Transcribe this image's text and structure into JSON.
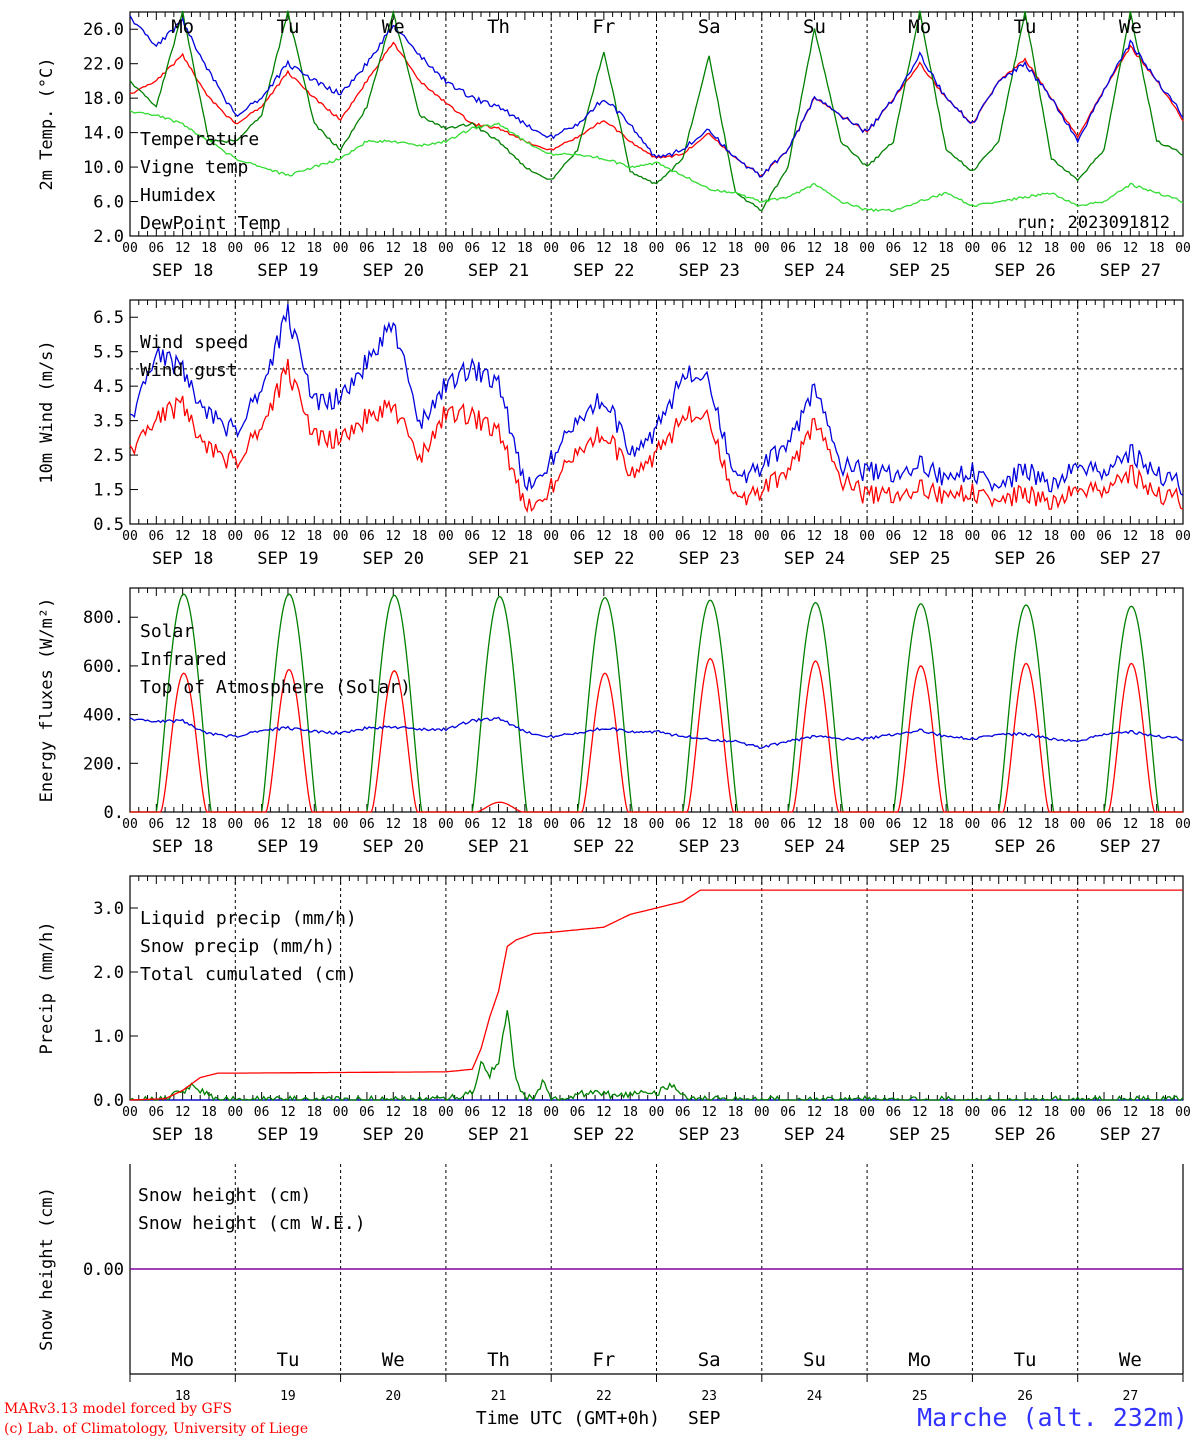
{
  "colors": {
    "red": "#ff0000",
    "darkgreen": "#008000",
    "blue": "#0000dd",
    "lightgreen": "#33dd33",
    "purple": "#8000a0",
    "weekend": "#ff0000"
  },
  "days": {
    "weekday": [
      "Mo",
      "Tu",
      "We",
      "Th",
      "Fr",
      "Sa",
      "Su",
      "Mo",
      "Tu",
      "We"
    ],
    "weekend_flags": [
      false,
      false,
      false,
      false,
      false,
      true,
      true,
      false,
      false,
      false
    ],
    "date_labels": [
      "SEP 18",
      "SEP 19",
      "SEP 20",
      "SEP 21",
      "SEP 22",
      "SEP 23",
      "SEP 24",
      "SEP 25",
      "SEP 26",
      "SEP 27"
    ],
    "day_numbers": [
      "18",
      "19",
      "20",
      "21",
      "22",
      "23",
      "24",
      "25",
      "26",
      "27"
    ],
    "hour_ticks": [
      "00",
      "06",
      "12",
      "18"
    ],
    "final_tick": "00"
  },
  "footer": {
    "model_line": "MARv3.13 model forced by GFS",
    "copyright_line": "(c) Lab. of Climatology, University of Liege",
    "xaxis_title": "Time UTC (GMT+0h)",
    "month": "SEP",
    "station": "Marche (alt. 232m)"
  },
  "chart_data": [
    {
      "type": "line",
      "ylabel": "2m Temp. (°C)",
      "ylim": [
        2,
        28
      ],
      "yticks": [
        "26.0",
        "22.0",
        "18.0",
        "14.0",
        "10.0",
        "6.0",
        "2.0"
      ],
      "ytick_values": [
        26,
        22,
        18,
        14,
        10,
        6,
        2
      ],
      "annotation": "run: 2023091812",
      "x_unit": "hours since SEP 18 00 UTC",
      "legend": [
        "Temperature",
        "Vigne temp",
        "Humidex",
        "DewPoint Temp"
      ],
      "series": [
        {
          "name": "Temperature",
          "color_key": "red",
          "x": [
            0,
            6,
            12,
            18,
            24,
            30,
            36,
            42,
            48,
            54,
            60,
            66,
            72,
            78,
            84,
            90,
            96,
            102,
            108,
            114,
            120,
            126,
            132,
            138,
            144,
            150,
            156,
            162,
            168,
            174,
            180,
            186,
            192,
            198,
            204,
            210,
            216,
            222,
            228,
            234,
            240
          ],
          "values": [
            18.5,
            20,
            23,
            18,
            15,
            17,
            21,
            18,
            15.5,
            20,
            24.5,
            20,
            17.5,
            15,
            14.5,
            13,
            12,
            13.5,
            15.5,
            13,
            11,
            11.5,
            14,
            11,
            9,
            12,
            18,
            16,
            14,
            18,
            22,
            18,
            15,
            20,
            22.5,
            18,
            13.5,
            19,
            24,
            20,
            15.5
          ]
        },
        {
          "name": "Vigne temp",
          "color_key": "darkgreen",
          "x": [
            0,
            6,
            12,
            18,
            24,
            30,
            36,
            42,
            48,
            54,
            60,
            66,
            72,
            78,
            84,
            90,
            96,
            102,
            108,
            114,
            120,
            126,
            132,
            138,
            144,
            150,
            156,
            162,
            168,
            174,
            180,
            186,
            192,
            198,
            204,
            210,
            216,
            222,
            228,
            234,
            240
          ],
          "values": [
            20,
            17,
            28,
            13,
            13,
            16,
            28,
            15,
            12,
            17,
            28,
            16,
            14.5,
            15,
            13,
            10,
            8.5,
            12,
            23.5,
            9.5,
            8,
            11,
            23,
            7,
            5,
            10,
            26,
            13,
            10,
            13,
            28,
            12,
            9.5,
            13,
            28,
            11,
            8.5,
            12,
            28,
            13,
            11.5
          ]
        },
        {
          "name": "Humidex",
          "color_key": "blue",
          "x": [
            0,
            6,
            12,
            18,
            24,
            30,
            36,
            42,
            48,
            54,
            60,
            66,
            72,
            78,
            84,
            90,
            96,
            102,
            108,
            114,
            120,
            126,
            132,
            138,
            144,
            150,
            156,
            162,
            168,
            174,
            180,
            186,
            192,
            198,
            204,
            210,
            216,
            222,
            228,
            234,
            240
          ],
          "values": [
            27.5,
            24,
            27,
            21,
            16,
            18,
            22,
            20,
            18.5,
            22,
            26.5,
            23,
            20,
            18,
            17,
            15,
            13.5,
            15,
            18,
            15,
            11,
            12,
            14.5,
            11,
            9,
            12,
            18,
            16,
            14,
            18,
            23,
            18,
            15,
            20,
            22,
            18,
            13,
            19,
            24.5,
            20,
            16
          ]
        },
        {
          "name": "DewPoint Temp",
          "color_key": "lightgreen",
          "x": [
            0,
            6,
            12,
            18,
            24,
            30,
            36,
            42,
            48,
            54,
            60,
            66,
            72,
            78,
            84,
            90,
            96,
            102,
            108,
            114,
            120,
            126,
            132,
            138,
            144,
            150,
            156,
            162,
            168,
            174,
            180,
            186,
            192,
            198,
            204,
            210,
            216,
            222,
            228,
            234,
            240
          ],
          "values": [
            16.5,
            16,
            15,
            13,
            11,
            10,
            9,
            10,
            11,
            13,
            13,
            12.5,
            13,
            14.5,
            15,
            13,
            11.5,
            11.5,
            11,
            10,
            10.5,
            9,
            7.5,
            7,
            6,
            6.5,
            8,
            6,
            5,
            5,
            6,
            7,
            5.5,
            6,
            6.5,
            7,
            5.5,
            6,
            8,
            7,
            6
          ]
        }
      ]
    },
    {
      "type": "line",
      "ylabel": "10m Wind (m/s)",
      "ylim": [
        0.5,
        7
      ],
      "yticks": [
        "6.5",
        "5.5",
        "4.5",
        "3.5",
        "2.5",
        "1.5",
        "0.5"
      ],
      "ytick_values": [
        6.5,
        5.5,
        4.5,
        3.5,
        2.5,
        1.5,
        0.5
      ],
      "reference_line": 5,
      "x_unit": "hours since SEP 18 00 UTC",
      "legend": [
        "Wind speed",
        "Wind gust"
      ],
      "series": [
        {
          "name": "Wind speed",
          "color_key": "red",
          "x": [
            0,
            6,
            12,
            18,
            24,
            30,
            36,
            42,
            48,
            54,
            60,
            66,
            72,
            78,
            84,
            90,
            96,
            102,
            108,
            114,
            120,
            126,
            132,
            138,
            144,
            150,
            156,
            162,
            168,
            174,
            180,
            186,
            192,
            198,
            204,
            210,
            216,
            222,
            228,
            234,
            240
          ],
          "values": [
            2.7,
            3.5,
            4.0,
            2.6,
            2.3,
            3.3,
            5.0,
            3.0,
            3.0,
            3.6,
            4.0,
            2.4,
            3.8,
            3.6,
            3.2,
            1.0,
            1.6,
            2.7,
            3.2,
            2.0,
            2.5,
            3.6,
            3.7,
            1.2,
            1.5,
            2.0,
            3.4,
            1.8,
            1.3,
            1.4,
            1.5,
            1.3,
            1.4,
            1.2,
            1.4,
            1.1,
            1.5,
            1.5,
            2.0,
            1.3,
            1.2
          ]
        },
        {
          "name": "Wind gust",
          "color_key": "blue",
          "x": [
            0,
            6,
            12,
            18,
            24,
            30,
            36,
            42,
            48,
            54,
            60,
            66,
            72,
            78,
            84,
            90,
            96,
            102,
            108,
            114,
            120,
            126,
            132,
            138,
            144,
            150,
            156,
            162,
            168,
            174,
            180,
            186,
            192,
            198,
            204,
            210,
            216,
            222,
            228,
            234,
            240
          ],
          "values": [
            3.6,
            5.4,
            5.0,
            3.6,
            3.2,
            4.4,
            6.6,
            4.0,
            4.2,
            5.2,
            6.4,
            3.4,
            4.6,
            5.0,
            4.6,
            1.6,
            2.4,
            3.6,
            4.2,
            2.6,
            3.2,
            4.8,
            4.8,
            1.8,
            2.2,
            2.8,
            4.4,
            2.2,
            2.0,
            2.0,
            2.2,
            1.8,
            2.0,
            1.6,
            2.1,
            1.6,
            2.2,
            2.0,
            2.6,
            1.9,
            1.6
          ]
        }
      ]
    },
    {
      "type": "line",
      "ylabel": "Energy fluxes (W/m²)",
      "ylim": [
        0,
        920
      ],
      "yticks": [
        "800.",
        "600.",
        "400.",
        "200.",
        "0."
      ],
      "ytick_values": [
        800,
        600,
        400,
        200,
        0
      ],
      "x_unit": "hours since SEP 18 00 UTC",
      "legend": [
        "Solar",
        "Infrared",
        "Top of Atmosphere (Solar)"
      ],
      "series": [
        {
          "name": "Solar",
          "color_key": "red",
          "day_peaks": [
            570,
            585,
            580,
            40,
            570,
            630,
            620,
            600,
            610,
            610
          ]
        },
        {
          "name": "Infrared",
          "color_key": "blue",
          "x": [
            0,
            6,
            12,
            18,
            24,
            30,
            36,
            42,
            48,
            54,
            60,
            66,
            72,
            78,
            84,
            90,
            96,
            102,
            108,
            114,
            120,
            126,
            132,
            138,
            144,
            150,
            156,
            162,
            168,
            174,
            180,
            186,
            192,
            198,
            204,
            210,
            216,
            222,
            228,
            234,
            240
          ],
          "values": [
            385,
            370,
            375,
            320,
            310,
            335,
            345,
            330,
            325,
            345,
            350,
            340,
            340,
            375,
            385,
            330,
            310,
            325,
            345,
            330,
            330,
            310,
            300,
            290,
            265,
            290,
            310,
            300,
            300,
            320,
            335,
            310,
            300,
            320,
            320,
            300,
            290,
            320,
            330,
            310,
            300
          ]
        },
        {
          "name": "Top of Atmosphere (Solar)",
          "color_key": "darkgreen",
          "day_peaks": [
            895,
            895,
            890,
            885,
            880,
            870,
            860,
            855,
            850,
            845
          ]
        }
      ]
    },
    {
      "type": "line",
      "ylabel": "Precip (mm/h)",
      "ylim": [
        0,
        3.5
      ],
      "yticks": [
        "3.0",
        "2.0",
        "1.0",
        "0.0"
      ],
      "ytick_values": [
        3,
        2,
        1,
        0
      ],
      "x_unit": "hours since SEP 18 00 UTC",
      "legend": [
        "Liquid precip (mm/h)",
        "Snow precip (mm/h)",
        "Total cumulated (cm)"
      ],
      "series": [
        {
          "name": "Liquid precip (mm/h)",
          "color_key": "darkgreen",
          "x": [
            0,
            8,
            10,
            12,
            14,
            16,
            18,
            20,
            72,
            78,
            80,
            82,
            84,
            85,
            86,
            88,
            90,
            92,
            94,
            96,
            100,
            104,
            108,
            112,
            116,
            120,
            122,
            124,
            126,
            128,
            132,
            240
          ],
          "values": [
            0,
            0,
            0.1,
            0.15,
            0.2,
            0.15,
            0.1,
            0,
            0,
            0.1,
            0.6,
            0.4,
            0.6,
            1.0,
            1.45,
            0.3,
            0.05,
            0,
            0.3,
            0,
            0.05,
            0.1,
            0.1,
            0.05,
            0.1,
            0.1,
            0.2,
            0.25,
            0.1,
            0,
            0,
            0
          ]
        },
        {
          "name": "Snow precip (mm/h)",
          "color_key": "blue",
          "x": [
            0,
            240
          ],
          "values": [
            0,
            0
          ]
        },
        {
          "name": "Total cumulated (cm)",
          "color_key": "red",
          "x": [
            0,
            8,
            12,
            16,
            20,
            24,
            72,
            78,
            80,
            82,
            84,
            86,
            88,
            92,
            96,
            108,
            114,
            120,
            126,
            130,
            240
          ],
          "values": [
            0,
            0.02,
            0.15,
            0.35,
            0.42,
            0.42,
            0.44,
            0.48,
            0.8,
            1.3,
            1.7,
            2.4,
            2.5,
            2.6,
            2.62,
            2.7,
            2.9,
            3.0,
            3.1,
            3.28,
            3.28
          ]
        }
      ]
    },
    {
      "type": "line",
      "ylabel": "Snow height (cm)",
      "yticks": [
        "0.00"
      ],
      "ytick_values": [
        0
      ],
      "x_unit": "hours since SEP 18 00 UTC",
      "legend": [
        "Snow height (cm)",
        "Snow height (cm W.E.)"
      ],
      "series": [
        {
          "name": "Snow height (cm)",
          "color_key": "red",
          "x": [
            0,
            240
          ],
          "values": [
            0,
            0
          ]
        },
        {
          "name": "Snow height (cm W.E.)",
          "color_key": "blue",
          "x": [
            0,
            240
          ],
          "values": [
            0,
            0
          ]
        }
      ]
    }
  ]
}
